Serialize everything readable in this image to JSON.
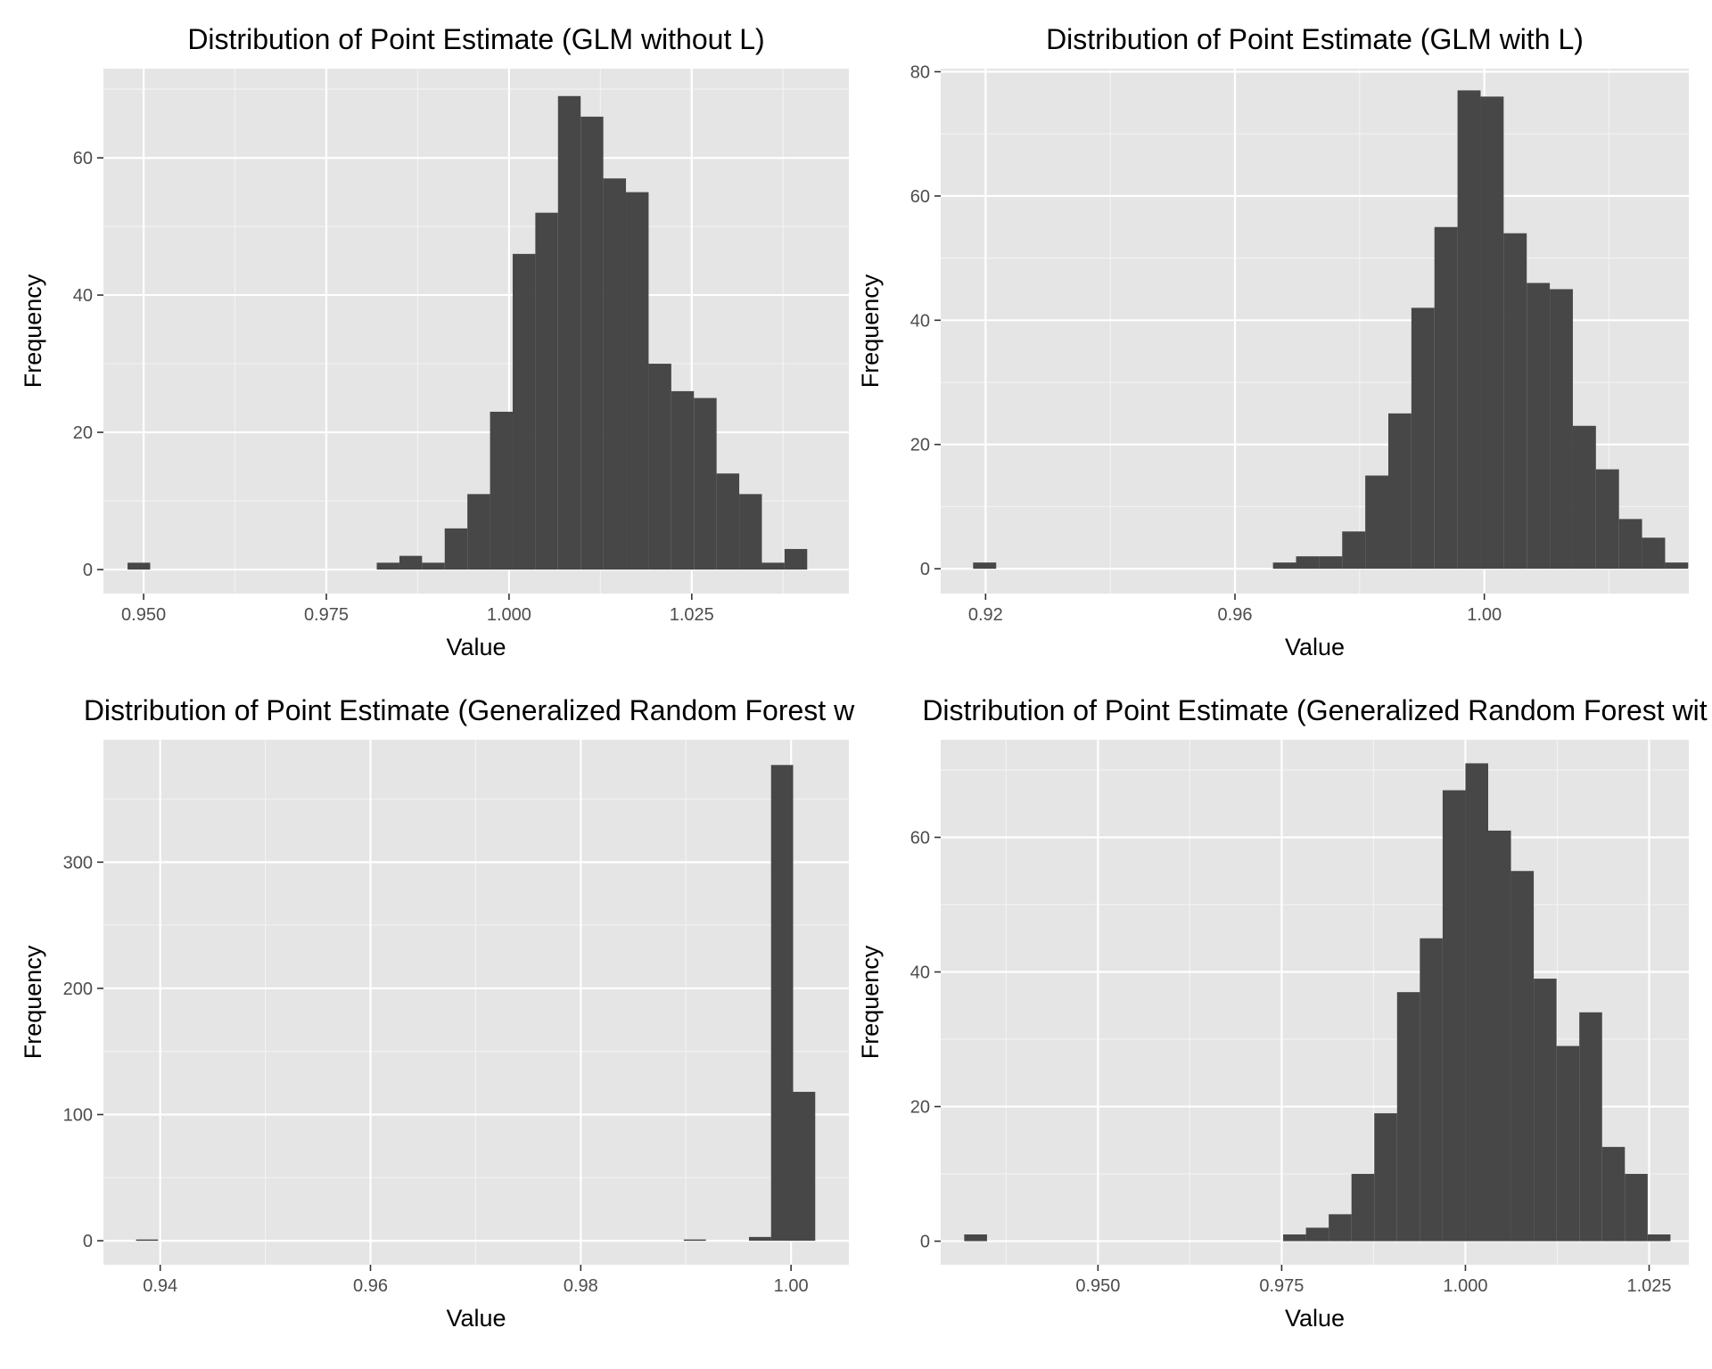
{
  "chart_data": [
    {
      "type": "bar",
      "title": "Distribution of Point Estimate (GLM without L)",
      "xlabel": "Value",
      "ylabel": "Frequency",
      "xlim": [
        0.9445,
        1.0465
      ],
      "ylim": [
        -3.5,
        73
      ],
      "xticks": [
        0.95,
        0.975,
        1.0,
        1.025
      ],
      "xtick_labels": [
        "0.950",
        "0.975",
        "1.000",
        "1.025"
      ],
      "yticks": [
        0,
        20,
        40,
        60
      ],
      "ytick_labels": [
        "0",
        "20",
        "40",
        "60"
      ],
      "bin_width": 0.0031,
      "bins": [
        {
          "x0": 0.9478,
          "count": 1
        },
        {
          "x0": 0.9509,
          "count": 0
        },
        {
          "x0": 0.954,
          "count": 0
        },
        {
          "x0": 0.9571,
          "count": 0
        },
        {
          "x0": 0.9602,
          "count": 0
        },
        {
          "x0": 0.9633,
          "count": 0
        },
        {
          "x0": 0.9664,
          "count": 0
        },
        {
          "x0": 0.9695,
          "count": 0
        },
        {
          "x0": 0.9726,
          "count": 0
        },
        {
          "x0": 0.9757,
          "count": 0
        },
        {
          "x0": 0.9788,
          "count": 0
        },
        {
          "x0": 0.9819,
          "count": 1
        },
        {
          "x0": 0.985,
          "count": 2
        },
        {
          "x0": 0.9881,
          "count": 1
        },
        {
          "x0": 0.9912,
          "count": 6
        },
        {
          "x0": 0.9943,
          "count": 11
        },
        {
          "x0": 0.9974,
          "count": 23
        },
        {
          "x0": 1.0005,
          "count": 46
        },
        {
          "x0": 1.0036,
          "count": 52
        },
        {
          "x0": 1.0067,
          "count": 69
        },
        {
          "x0": 1.0098,
          "count": 66
        },
        {
          "x0": 1.0129,
          "count": 57
        },
        {
          "x0": 1.016,
          "count": 55
        },
        {
          "x0": 1.0191,
          "count": 30
        },
        {
          "x0": 1.0222,
          "count": 26
        },
        {
          "x0": 1.0253,
          "count": 25
        },
        {
          "x0": 1.0284,
          "count": 14
        },
        {
          "x0": 1.0315,
          "count": 11
        },
        {
          "x0": 1.0346,
          "count": 1
        },
        {
          "x0": 1.0377,
          "count": 3
        }
      ]
    },
    {
      "type": "bar",
      "title": "Distribution of Point Estimate (GLM with L)",
      "xlabel": "Value",
      "ylabel": "Frequency",
      "xlim": [
        0.9128,
        1.0328
      ],
      "ylim": [
        -4.0,
        80.5
      ],
      "xticks": [
        0.92,
        0.96,
        1.0
      ],
      "xtick_labels": [
        "0.92",
        "0.96",
        "1.00"
      ],
      "yticks": [
        0,
        20,
        40,
        60,
        80
      ],
      "ytick_labels": [
        "0",
        "20",
        "40",
        "60",
        "80"
      ],
      "bin_width": 0.0037,
      "bins": [
        {
          "x0": 0.918,
          "count": 1
        },
        {
          "x0": 0.9217,
          "count": 0
        },
        {
          "x0": 0.9254,
          "count": 0
        },
        {
          "x0": 0.9291,
          "count": 0
        },
        {
          "x0": 0.9328,
          "count": 0
        },
        {
          "x0": 0.9365,
          "count": 0
        },
        {
          "x0": 0.9402,
          "count": 0
        },
        {
          "x0": 0.9439,
          "count": 0
        },
        {
          "x0": 0.9476,
          "count": 0
        },
        {
          "x0": 0.9513,
          "count": 0
        },
        {
          "x0": 0.955,
          "count": 0
        },
        {
          "x0": 0.9587,
          "count": 0
        },
        {
          "x0": 0.9624,
          "count": 0
        },
        {
          "x0": 0.9661,
          "count": 1
        },
        {
          "x0": 0.9698,
          "count": 2
        },
        {
          "x0": 0.9735,
          "count": 2
        },
        {
          "x0": 0.9772,
          "count": 6
        },
        {
          "x0": 0.9809,
          "count": 15
        },
        {
          "x0": 0.9846,
          "count": 25
        },
        {
          "x0": 0.9883,
          "count": 42
        },
        {
          "x0": 0.992,
          "count": 55
        },
        {
          "x0": 0.9957,
          "count": 77
        },
        {
          "x0": 0.9994,
          "count": 76
        },
        {
          "x0": 1.0031,
          "count": 54
        },
        {
          "x0": 1.0068,
          "count": 46
        },
        {
          "x0": 1.0105,
          "count": 45
        },
        {
          "x0": 1.0142,
          "count": 23
        },
        {
          "x0": 1.0179,
          "count": 16
        },
        {
          "x0": 1.0216,
          "count": 8
        },
        {
          "x0": 1.0253,
          "count": 5
        },
        {
          "x0": 1.029,
          "count": 1
        }
      ]
    },
    {
      "type": "bar",
      "title": "Distribution of Point Estimate (Generalized Random Forest wit",
      "xlabel": "Value",
      "ylabel": "Frequency",
      "xlim": [
        0.9346,
        1.0055
      ],
      "ylim": [
        -19,
        397
      ],
      "xticks": [
        0.94,
        0.96,
        0.98,
        1.0
      ],
      "xtick_labels": [
        "0.94",
        "0.96",
        "0.98",
        "1.00"
      ],
      "yticks": [
        0,
        100,
        200,
        300
      ],
      "ytick_labels": [
        "0",
        "100",
        "200",
        "300"
      ],
      "bin_width": 0.0021,
      "bins": [
        {
          "x0": 0.9377,
          "count": 1
        },
        {
          "x0": 0.9898,
          "count": 1
        },
        {
          "x0": 0.996,
          "count": 3
        },
        {
          "x0": 0.9981,
          "count": 377
        },
        {
          "x0": 1.0002,
          "count": 118
        }
      ]
    },
    {
      "type": "bar",
      "title": "Distribution of Point Estimate (Generalized Random Forest wit",
      "xlabel": "Value",
      "ylabel": "Frequency",
      "xlim": [
        0.9286,
        1.0304
      ],
      "ylim": [
        -3.5,
        74.5
      ],
      "xticks": [
        0.95,
        0.975,
        1.0,
        1.025
      ],
      "xtick_labels": [
        "0.950",
        "0.975",
        "1.000",
        "1.025"
      ],
      "yticks": [
        0,
        20,
        40,
        60
      ],
      "ytick_labels": [
        "0",
        "20",
        "40",
        "60"
      ],
      "bin_width": 0.0031,
      "bins": [
        {
          "x0": 0.9318,
          "count": 1
        },
        {
          "x0": 0.9349,
          "count": 0
        },
        {
          "x0": 0.938,
          "count": 0
        },
        {
          "x0": 0.9411,
          "count": 0
        },
        {
          "x0": 0.9442,
          "count": 0
        },
        {
          "x0": 0.9473,
          "count": 0
        },
        {
          "x0": 0.9504,
          "count": 0
        },
        {
          "x0": 0.9535,
          "count": 0
        },
        {
          "x0": 0.9566,
          "count": 0
        },
        {
          "x0": 0.9597,
          "count": 0
        },
        {
          "x0": 0.9628,
          "count": 0
        },
        {
          "x0": 0.9659,
          "count": 0
        },
        {
          "x0": 0.969,
          "count": 0
        },
        {
          "x0": 0.9721,
          "count": 0
        },
        {
          "x0": 0.9752,
          "count": 1
        },
        {
          "x0": 0.9783,
          "count": 2
        },
        {
          "x0": 0.9814,
          "count": 4
        },
        {
          "x0": 0.9845,
          "count": 10
        },
        {
          "x0": 0.9876,
          "count": 19
        },
        {
          "x0": 0.9907,
          "count": 37
        },
        {
          "x0": 0.9938,
          "count": 45
        },
        {
          "x0": 0.9969,
          "count": 67
        },
        {
          "x0": 1.0,
          "count": 71
        },
        {
          "x0": 1.0031,
          "count": 61
        },
        {
          "x0": 1.0062,
          "count": 55
        },
        {
          "x0": 1.0093,
          "count": 39
        },
        {
          "x0": 1.0124,
          "count": 29
        },
        {
          "x0": 1.0155,
          "count": 34
        },
        {
          "x0": 1.0186,
          "count": 14
        },
        {
          "x0": 1.0217,
          "count": 10
        },
        {
          "x0": 1.0248,
          "count": 1
        }
      ]
    }
  ]
}
